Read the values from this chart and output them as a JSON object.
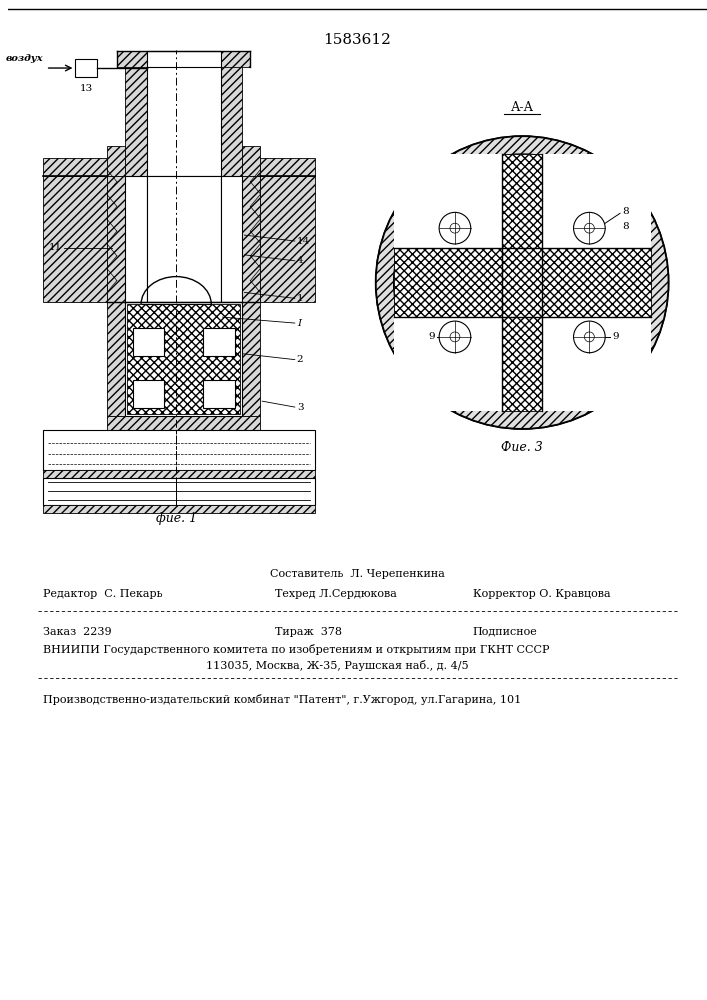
{
  "patent_number": "1583612",
  "bg_color": "#ffffff",
  "line_color": "#000000",
  "fig1_label": "фие. 1",
  "fig3_label": "Фие. 3",
  "section_label": "А-А",
  "vozdukh_label": "воздух",
  "label_13": "13",
  "label_11": "11",
  "label_14": "14",
  "label_4": "4",
  "label_1": "1",
  "label_I": "I",
  "label_2": "2",
  "label_3": "3",
  "label_8": "8",
  "label_9": "9",
  "footer_line1": "Составитель  Л. Черепенкина",
  "footer_line2_col1": "Редактор  С. Пекарь",
  "footer_line2_col2": "Техред Л.Сердюкова",
  "footer_line2_col3": "Корректор О. Кравцова",
  "footer_line3_col1": "Заказ  2239",
  "footer_line3_col2": "Тираж  378",
  "footer_line3_col3": "Подписное",
  "footer_line4": "ВНИИПИ Государственного комитета по изобретениям и открытиям при ГКНТ СССР",
  "footer_line5": "113035, Москва, Ж-35, Раушская наб., д. 4/5",
  "footer_line6": "Производственно-издательский комбинат \"Патент\", г.Ужгород, ул.Гагарина, 101"
}
